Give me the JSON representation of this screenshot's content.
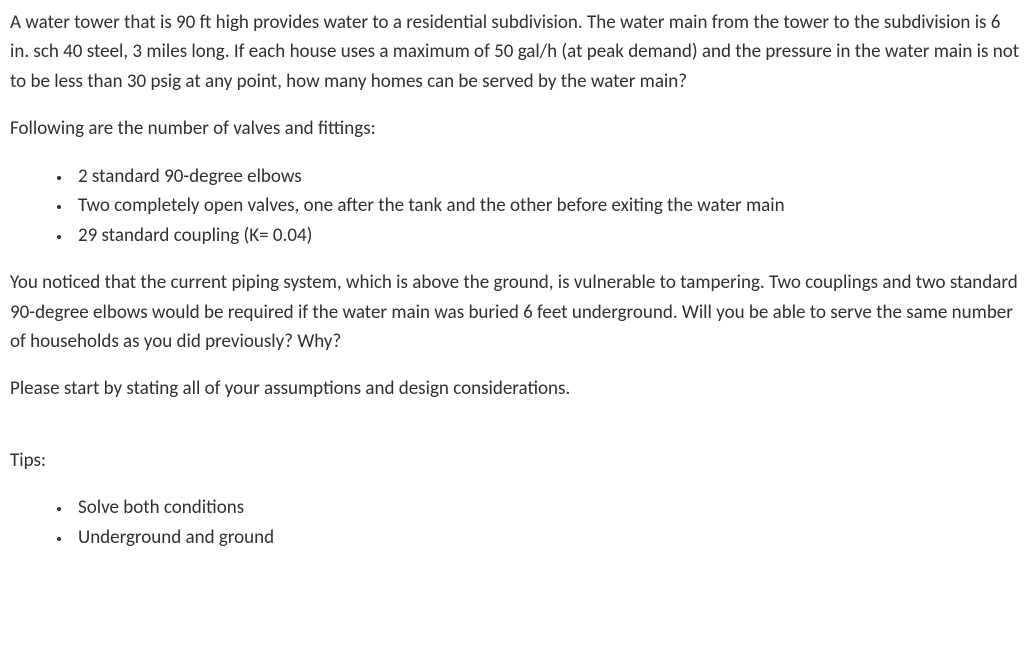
{
  "problem": {
    "intro": "A water tower that is 90 ft high provides water to a residential subdivision. The water main from the tower to the subdivision is 6 in. sch 40 steel, 3 miles long. If each house uses a maximum of 50 gal/h (at peak demand) and the pressure in the water main is not to be less than 30 psig at any point, how many homes can be served by the water main?",
    "fittings_lead": "Following are the number of valves and fittings:",
    "fittings": [
      "2 standard 90-degree elbows",
      "Two completely open valves, one after the tank and the other before exiting the water main",
      "29 standard coupling (K= 0.04)"
    ],
    "underground": "You noticed that the current piping system, which is above the ground, is vulnerable to tampering. Two couplings and two standard 90-degree elbows would be required if the water main was buried 6 feet underground. Will you be able to serve the same number of households as you did previously? Why?",
    "assumptions_prompt": "Please start by stating all of your assumptions and design considerations."
  },
  "tips": {
    "heading": "Tips:",
    "items": [
      "Solve both conditions",
      "Underground and ground"
    ]
  },
  "style": {
    "text_color": "#303030",
    "background_color": "#ffffff",
    "font_family": "Calibri",
    "font_size_pt": 14,
    "line_height": 1.55
  }
}
